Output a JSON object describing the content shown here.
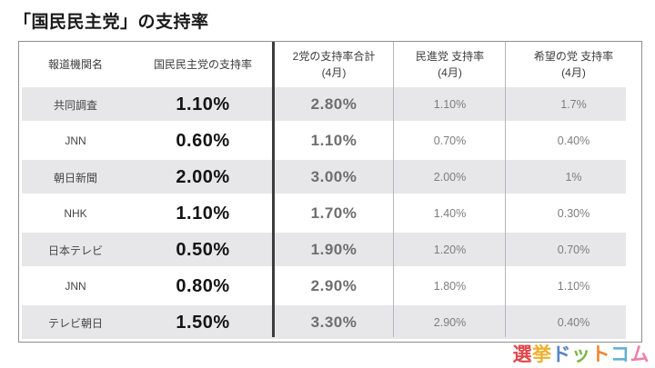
{
  "title": "「国民民主党」の支持率",
  "chart_data": {
    "type": "table",
    "title": "「国民民主党」の支持率",
    "columns": [
      {
        "label": "報道機関名",
        "sublabel": ""
      },
      {
        "label": "国民民主党の支持率",
        "sublabel": ""
      },
      {
        "label": "2党の支持率合計",
        "sublabel": "(4月)"
      },
      {
        "label": "民進党 支持率",
        "sublabel": "(4月)"
      },
      {
        "label": "希望の党 支持率",
        "sublabel": "(4月)"
      }
    ],
    "rows": [
      {
        "name": "共同調査",
        "dpp": "1.10%",
        "total": "2.80%",
        "minshin": "1.10%",
        "kibou": "1.7%"
      },
      {
        "name": "JNN",
        "dpp": "0.60%",
        "total": "1.10%",
        "minshin": "0.70%",
        "kibou": "0.40%"
      },
      {
        "name": "朝日新聞",
        "dpp": "2.00%",
        "total": "3.00%",
        "minshin": "2.00%",
        "kibou": "1%"
      },
      {
        "name": "NHK",
        "dpp": "1.10%",
        "total": "1.70%",
        "minshin": "1.40%",
        "kibou": "0.30%"
      },
      {
        "name": "日本テレビ",
        "dpp": "0.50%",
        "total": "1.90%",
        "minshin": "1.20%",
        "kibou": "0.70%"
      },
      {
        "name": "JNN",
        "dpp": "0.80%",
        "total": "2.90%",
        "minshin": "1.80%",
        "kibou": "1.10%"
      },
      {
        "name": "テレビ朝日",
        "dpp": "1.50%",
        "total": "3.30%",
        "minshin": "2.90%",
        "kibou": "0.40%"
      }
    ]
  },
  "logo": {
    "name": "選挙ドットコム",
    "characters": [
      {
        "char": "選",
        "color": "#e0474c"
      },
      {
        "char": "挙",
        "color": "#efb02e"
      },
      {
        "char": "ド",
        "color": "#5585c4"
      },
      {
        "char": "ッ",
        "color": "#7ab648"
      },
      {
        "char": "ト",
        "color": "#f08632"
      },
      {
        "char": "コ",
        "color": "#62aed2"
      },
      {
        "char": "ム",
        "color": "#ed7fa6"
      }
    ]
  },
  "colors": {
    "title_text": "#1a1a1a",
    "header_text": "#3d3d3d",
    "name_text": "#454545",
    "dpp_text": "#141414",
    "total_text": "#6e6e6e",
    "small_text": "#7d7d7d",
    "band": "#e7e7ea",
    "table_border": "#8f8f8f",
    "thick_divider": "#3d3d3d",
    "thin_divider": "#b7b7bc"
  }
}
